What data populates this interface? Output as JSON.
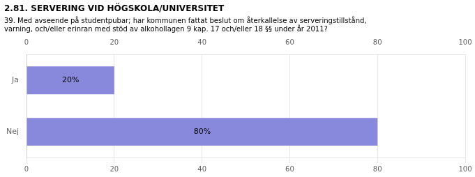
{
  "chart_data": {
    "type": "bar",
    "orientation": "horizontal",
    "title": "2.81. SERVERING VID HÖGSKOLA/UNIVERSITET",
    "subtitle": "39. Med avseende på studentpubar; har kommunen fattat beslut om återkallelse av serveringstillstånd,\nvarning, och/eller erinran med stöd av alkohollagen 9 kap. 17 och/eller 18 §§ under år 2011?",
    "categories": [
      "Ja",
      "Nej"
    ],
    "values": [
      20,
      80
    ],
    "value_labels": [
      "20%",
      "80%"
    ],
    "data_labels": true,
    "color": "#8888dd",
    "xlim": [
      0,
      100
    ],
    "xticks": [
      0,
      20,
      40,
      60,
      80,
      100
    ],
    "grid": true
  }
}
